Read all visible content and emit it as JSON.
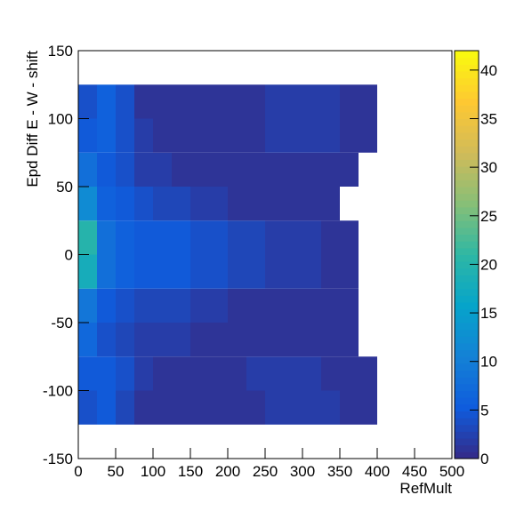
{
  "chart_data": {
    "type": "heatmap",
    "x_label": "RefMult",
    "y_label": "Epd Diff E - W - shift",
    "x_bins": [
      0,
      25,
      50,
      75,
      100,
      125,
      150,
      175,
      200,
      225,
      250,
      275,
      300,
      325,
      350,
      375,
      400,
      425,
      450,
      475,
      500
    ],
    "y_bins": [
      -150,
      -125,
      -100,
      -75,
      -50,
      -25,
      0,
      25,
      50,
      75,
      100,
      125,
      150
    ],
    "values": [
      [
        0,
        0,
        0,
        0,
        0,
        0,
        0,
        0,
        0,
        0,
        0,
        0,
        0,
        0,
        0,
        0,
        0,
        0,
        0,
        0
      ],
      [
        4,
        5,
        3,
        1,
        1,
        1,
        1,
        1,
        1,
        1,
        2,
        2,
        2,
        2,
        1,
        1,
        0,
        0,
        0,
        0
      ],
      [
        5,
        5,
        4,
        2,
        1,
        1,
        1,
        1,
        1,
        2,
        2,
        2,
        2,
        1,
        1,
        1,
        0,
        0,
        0,
        0
      ],
      [
        7,
        4,
        3,
        2,
        2,
        2,
        1,
        1,
        1,
        1,
        1,
        1,
        1,
        1,
        1,
        0,
        0,
        0,
        0,
        0
      ],
      [
        9,
        5,
        4,
        3,
        3,
        3,
        2,
        2,
        1,
        1,
        1,
        1,
        1,
        1,
        1,
        0,
        0,
        0,
        0,
        0
      ],
      [
        18,
        8,
        6,
        5,
        5,
        5,
        4,
        4,
        3,
        3,
        2,
        2,
        2,
        1,
        1,
        0,
        0,
        0,
        0,
        0
      ],
      [
        20,
        8,
        6,
        5,
        5,
        5,
        4,
        4,
        3,
        3,
        2,
        2,
        2,
        1,
        1,
        0,
        0,
        0,
        0,
        0
      ],
      [
        12,
        6,
        5,
        4,
        3,
        3,
        2,
        2,
        1,
        1,
        1,
        1,
        1,
        1,
        0,
        0,
        0,
        0,
        0,
        0
      ],
      [
        8,
        5,
        4,
        2,
        2,
        1,
        1,
        1,
        1,
        1,
        1,
        1,
        1,
        1,
        1,
        0,
        0,
        0,
        0,
        0
      ],
      [
        5,
        6,
        4,
        2,
        1,
        1,
        1,
        1,
        1,
        1,
        2,
        2,
        2,
        2,
        1,
        1,
        0,
        0,
        0,
        0
      ],
      [
        4,
        6,
        4,
        1,
        1,
        1,
        1,
        1,
        1,
        1,
        2,
        2,
        2,
        2,
        1,
        1,
        0,
        0,
        0,
        0
      ],
      [
        0,
        0,
        0,
        0,
        0,
        0,
        0,
        0,
        0,
        0,
        0,
        0,
        0,
        0,
        0,
        0,
        0,
        0,
        0,
        0
      ]
    ],
    "xlim": [
      0,
      500
    ],
    "xticks": [
      0,
      50,
      100,
      150,
      200,
      250,
      300,
      350,
      400,
      450,
      500
    ],
    "ylim": [
      -150,
      150
    ],
    "yticks": [
      -150,
      -100,
      -50,
      0,
      50,
      100,
      150
    ],
    "zlim": [
      0,
      42
    ],
    "zticks": [
      0,
      5,
      10,
      15,
      20,
      25,
      30,
      35,
      40
    ],
    "palette": [
      "#352a87",
      "#0f5cdd",
      "#1481d6",
      "#06a4ca",
      "#2eb7a4",
      "#87bf77",
      "#d1bb59",
      "#fec832",
      "#f9fb0e"
    ]
  }
}
